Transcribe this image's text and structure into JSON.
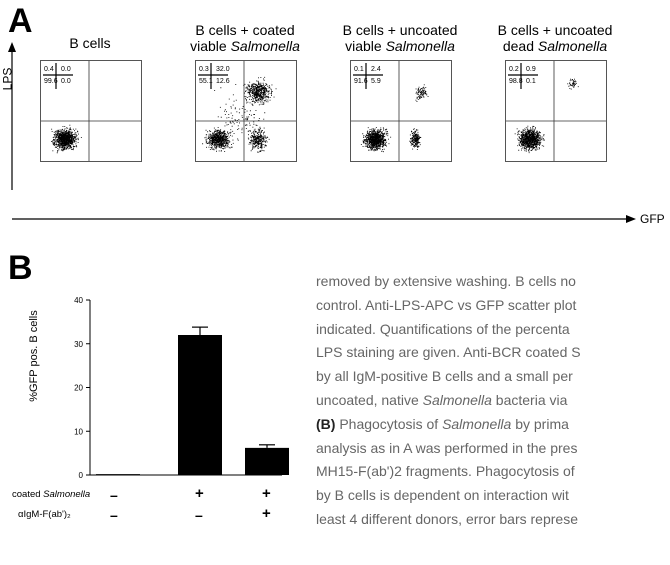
{
  "panel_a": {
    "letter": "A",
    "y_axis_label": "LPS",
    "x_axis_label": "GFP",
    "plots": [
      {
        "title_line1": "B cells",
        "title_line2": "",
        "title_italic": "",
        "q_ul": "0.4",
        "q_ur": "0.0",
        "q_ll": "99.6",
        "q_lr": "0.0"
      },
      {
        "title_line1": "B cells + coated",
        "title_line2": "viable ",
        "title_italic": "Salmonella",
        "q_ul": "0.3",
        "q_ur": "32.0",
        "q_ll": "55.1",
        "q_lr": "12.6"
      },
      {
        "title_line1": "B cells + uncoated",
        "title_line2": "viable ",
        "title_italic": "Salmonella",
        "q_ul": "0.1",
        "q_ur": "2.4",
        "q_ll": "91.6",
        "q_lr": "5.9"
      },
      {
        "title_line1": "B cells + uncoated",
        "title_line2": "dead ",
        "title_italic": "Salmonella",
        "q_ul": "0.2",
        "q_ur": "0.9",
        "q_ll": "98.8",
        "q_lr": "0.1"
      }
    ]
  },
  "panel_b": {
    "letter": "B",
    "chart_data": {
      "type": "bar",
      "ylabel": "%GFP pos. B cells",
      "ylim": [
        0,
        40
      ],
      "yticks": [
        "0",
        "10",
        "20",
        "30",
        "40"
      ],
      "values": [
        0.2,
        32,
        6.2
      ],
      "errors": [
        0,
        1.8,
        0.7
      ],
      "conditions": [
        {
          "label": "coated Salmonella",
          "label_plain": "coated ",
          "label_italic": "Salmonella",
          "marks": [
            "–",
            "+",
            "+"
          ]
        },
        {
          "label": "αIgM-F(ab')₂",
          "label_plain": "αIgM-F(ab')₂",
          "label_italic": "",
          "marks": [
            "–",
            "–",
            "+"
          ]
        }
      ]
    }
  },
  "caption": {
    "lines": [
      {
        "text": "removed by extensive washing. B cells no"
      },
      {
        "text": "control. Anti-LPS-APC vs GFP scatter plot"
      },
      {
        "text": "indicated. Quantifications of the percenta"
      },
      {
        "text": "LPS staining are given. Anti-BCR coated S",
        "italic_tail": ""
      },
      {
        "text": "by all IgM-positive B cells and a small per"
      },
      {
        "text": "uncoated, native ",
        "italic": "Salmonella",
        "after": " bacteria via"
      },
      {
        "bold": "(B)",
        "text": " Phagocytosis of ",
        "italic": "Salmonella",
        "after": " by prima"
      },
      {
        "text": "analysis as in A was performed in the pres"
      },
      {
        "text": "MH15-F(ab')2 fragments. Phagocytosis of"
      },
      {
        "text": "by B cells is dependent on interaction wit"
      },
      {
        "text": "least 4 different donors, error bars represe"
      }
    ]
  }
}
